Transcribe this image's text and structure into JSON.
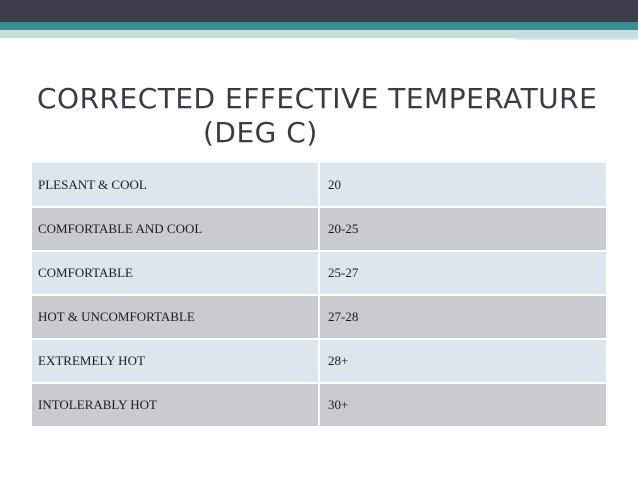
{
  "title": {
    "line1": "CORRECTED EFFECTIVE TEMPERATURE",
    "line2": "(DEG C)"
  },
  "table": {
    "rows": [
      {
        "label": "PLESANT & COOL",
        "value": "20"
      },
      {
        "label": "COMFORTABLE AND COOL",
        "value": "20-25"
      },
      {
        "label": "COMFORTABLE",
        "value": "25-27"
      },
      {
        "label": "HOT & UNCOMFORTABLE",
        "value": "27-28"
      },
      {
        "label": "EXTREMELY HOT",
        "value": "28+"
      },
      {
        "label": "INTOLERABLY HOT",
        "value": "30+"
      }
    ]
  },
  "colors": {
    "header_band_dark": "#3f3d4c",
    "header_band_teal": "#3c8d93",
    "title_text": "#3a3a48",
    "row_light": "#dce6ee",
    "row_gray": "#c9cbd1"
  }
}
